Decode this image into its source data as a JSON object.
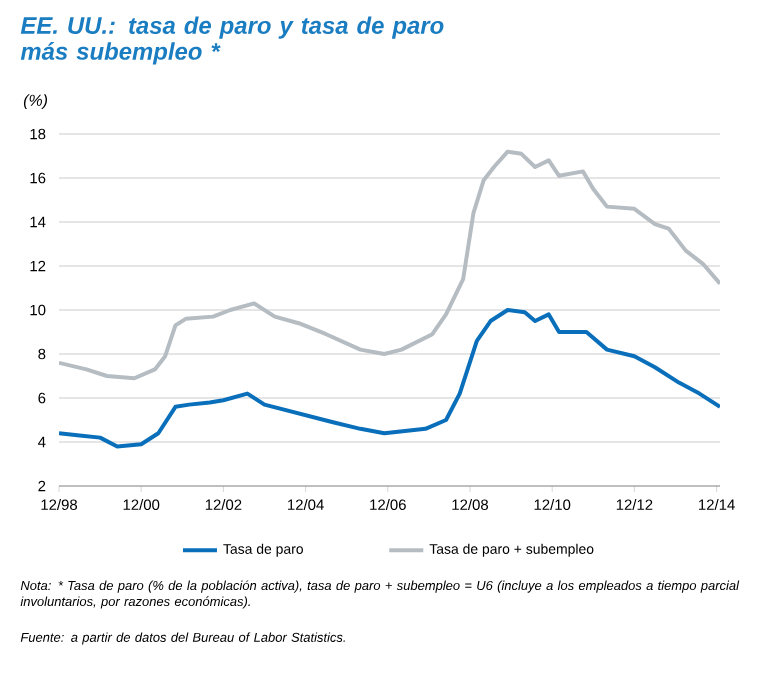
{
  "chart_data": {
    "type": "line",
    "title": "EE. UU.: tasa de paro y tasa de paro más subempleo *",
    "ylabel": "(%)",
    "xlim": [
      "1998-12",
      "2015-01"
    ],
    "xticks": [
      {
        "value": "1998-12",
        "label": "12/98"
      },
      {
        "value": "2000-12",
        "label": "12/00"
      },
      {
        "value": "2002-12",
        "label": "12/02"
      },
      {
        "value": "2004-12",
        "label": "12/04"
      },
      {
        "value": "2006-12",
        "label": "12/06"
      },
      {
        "value": "2008-12",
        "label": "12/08"
      },
      {
        "value": "2010-12",
        "label": "12/10"
      },
      {
        "value": "2012-12",
        "label": "12/12"
      },
      {
        "value": "2014-12",
        "label": "12/14"
      }
    ],
    "ylim": [
      2,
      18
    ],
    "yticks": [
      2,
      4,
      6,
      8,
      10,
      12,
      14,
      16,
      18
    ],
    "grid": "y",
    "legend": "bottom",
    "series": [
      {
        "name": "Tasa de paro",
        "color": "#0a6fba",
        "x": [
          "1998-12",
          "1999-06",
          "1999-12",
          "2000-05",
          "2000-12",
          "2001-05",
          "2001-10",
          "2002-02",
          "2002-08",
          "2002-12",
          "2003-07",
          "2003-12",
          "2004-10",
          "2005-08",
          "2006-04",
          "2006-11",
          "2007-11",
          "2008-05",
          "2008-09",
          "2009-02",
          "2009-06",
          "2009-11",
          "2010-04",
          "2010-07",
          "2010-11",
          "2011-02",
          "2011-10",
          "2012-04",
          "2012-12",
          "2013-06",
          "2014-01",
          "2014-07",
          "2015-01"
        ],
        "values": [
          4.4,
          4.3,
          4.2,
          3.8,
          3.9,
          4.4,
          5.6,
          5.7,
          5.8,
          5.9,
          6.2,
          5.7,
          5.3,
          4.9,
          4.6,
          4.4,
          4.6,
          5.0,
          6.2,
          8.6,
          9.5,
          10.0,
          9.9,
          9.5,
          9.8,
          9.0,
          9.0,
          8.2,
          7.9,
          7.4,
          6.7,
          6.2,
          5.6
        ]
      },
      {
        "name": "Tasa de paro + subempleo",
        "color": "#b5bcc2",
        "x": [
          "1998-12",
          "1999-08",
          "2000-02",
          "2000-10",
          "2001-04",
          "2001-07",
          "2001-10",
          "2002-01",
          "2002-09",
          "2003-02",
          "2003-09",
          "2004-03",
          "2004-10",
          "2005-06",
          "2006-04",
          "2006-11",
          "2007-04",
          "2008-01",
          "2008-05",
          "2008-10",
          "2009-01",
          "2009-04",
          "2009-07",
          "2009-11",
          "2010-03",
          "2010-07",
          "2010-11",
          "2011-02",
          "2011-09",
          "2011-12",
          "2012-04",
          "2012-12",
          "2013-06",
          "2013-10",
          "2014-03",
          "2014-08",
          "2015-01"
        ],
        "values": [
          7.6,
          7.3,
          7.0,
          6.9,
          7.3,
          7.9,
          9.3,
          9.6,
          9.7,
          10.0,
          10.3,
          9.7,
          9.4,
          8.9,
          8.2,
          8.0,
          8.2,
          8.9,
          9.8,
          11.4,
          14.4,
          15.9,
          16.5,
          17.2,
          17.1,
          16.5,
          16.8,
          16.1,
          16.3,
          15.5,
          14.7,
          14.6,
          13.9,
          13.7,
          12.7,
          12.1,
          11.2
        ]
      }
    ],
    "annotations": [
      "Nota: * Tasa de paro (% de la población activa), tasa de paro + subempleo = U6 (incluye a los empleados a tiempo parcial involuntarios, por razones económicas).",
      "Fuente: a partir de datos del Bureau of Labor Statistics."
    ]
  }
}
